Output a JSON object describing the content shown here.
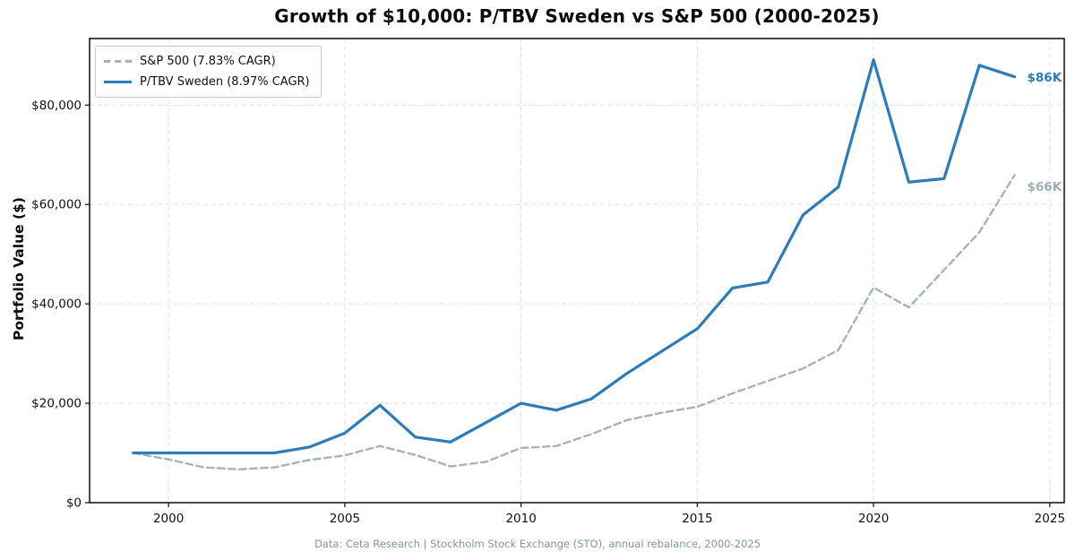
{
  "chart_data": {
    "type": "line",
    "title": "Growth of $10,000: P/TBV Sweden vs S&P 500 (2000-2025)",
    "xlabel": "",
    "ylabel": "Portfolio Value ($)",
    "caption": "Data: Ceta Research | Stockholm Stock Exchange (STO), annual rebalance, 2000-2025",
    "x": [
      1999,
      2000,
      2001,
      2002,
      2003,
      2004,
      2005,
      2006,
      2007,
      2008,
      2009,
      2010,
      2011,
      2012,
      2013,
      2014,
      2015,
      2016,
      2017,
      2018,
      2019,
      2020,
      2021,
      2022,
      2023,
      2024
    ],
    "series": [
      {
        "name": "S&P 500 (7.83% CAGR)",
        "key": "sp500",
        "style": "dashed",
        "values": [
          10000,
          8700,
          7100,
          6700,
          7100,
          8600,
          9500,
          11400,
          9600,
          7300,
          8200,
          11000,
          11400,
          13800,
          16600,
          18100,
          19300,
          22000,
          24500,
          27000,
          30700,
          43300,
          39300,
          46800,
          54400,
          65900
        ]
      },
      {
        "name": "P/TBV Sweden (8.97% CAGR)",
        "key": "sweden",
        "style": "solid",
        "values": [
          10000,
          10000,
          10000,
          10000,
          10000,
          11200,
          14000,
          19600,
          13200,
          12200,
          16100,
          20000,
          18600,
          20900,
          26000,
          30500,
          35000,
          43200,
          44400,
          57900,
          63500,
          89100,
          64500,
          65200,
          88000,
          85700
        ]
      }
    ],
    "x_ticks": [
      {
        "v": 2000,
        "label": "2000"
      },
      {
        "v": 2005,
        "label": "2005"
      },
      {
        "v": 2010,
        "label": "2010"
      },
      {
        "v": 2015,
        "label": "2015"
      },
      {
        "v": 2020,
        "label": "2020"
      },
      {
        "v": 2025,
        "label": "2025"
      }
    ],
    "y_ticks": [
      {
        "v": 0,
        "label": "$0"
      },
      {
        "v": 20000,
        "label": "$20,000"
      },
      {
        "v": 40000,
        "label": "$40,000"
      },
      {
        "v": 60000,
        "label": "$60,000"
      },
      {
        "v": 80000,
        "label": "$80,000"
      }
    ],
    "xlim": [
      1997.76,
      2025.41
    ],
    "ylim": [
      0,
      93400
    ],
    "grid": true,
    "legend_position": "upper-left",
    "annotations": [
      {
        "text": "$86K",
        "series": "sweden",
        "value": 85700,
        "dy": 1
      },
      {
        "text": "$66K",
        "series": "sp500",
        "value": 65900,
        "dy": 13
      }
    ]
  },
  "colors": {
    "sweden_line": "#2b7cbd",
    "sp500_line": "#a6b4b2",
    "annotation_sweden": "#2b7cbd",
    "annotation_sp500": "#9eafb5",
    "caption": "#7e97a4",
    "grid": "#dde2e2",
    "spine": "#1c1c1c",
    "tick_label": "#111111"
  }
}
